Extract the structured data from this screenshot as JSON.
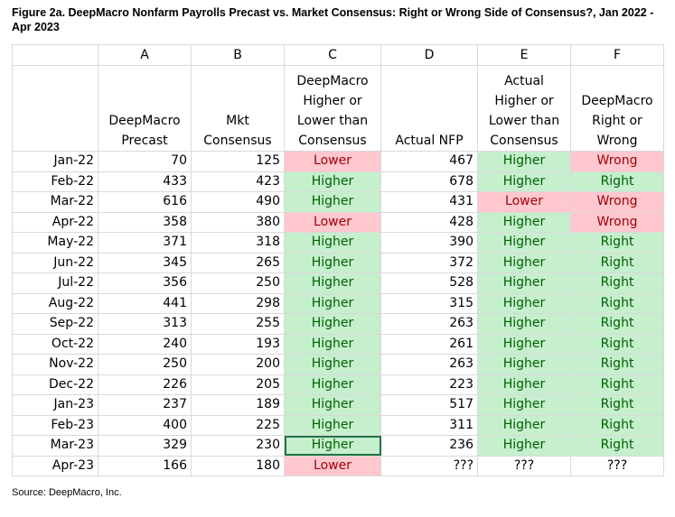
{
  "title": "Figure 2a. DeepMacro Nonfarm Payrolls Precast vs. Market Consensus: Right or Wrong Side of Consensus?, Jan 2022 - Apr 2023",
  "source": "Source: DeepMacro, Inc.",
  "column_letters": [
    "A",
    "B",
    "C",
    "D",
    "E",
    "F"
  ],
  "column_headers": [
    "DeepMacro Precast",
    "Mkt Consensus",
    "DeepMacro Higher or Lower than Consensus",
    "Actual NFP",
    "Actual Higher or Lower than Consensus",
    "DeepMacro Right or Wrong"
  ],
  "rows": [
    {
      "month": "Jan-22",
      "precast": "70",
      "consensus": "125",
      "dm_vs_cons": "Lower",
      "actual": "467",
      "actual_vs_cons": "Higher",
      "right_wrong": "Wrong"
    },
    {
      "month": "Feb-22",
      "precast": "433",
      "consensus": "423",
      "dm_vs_cons": "Higher",
      "actual": "678",
      "actual_vs_cons": "Higher",
      "right_wrong": "Right"
    },
    {
      "month": "Mar-22",
      "precast": "616",
      "consensus": "490",
      "dm_vs_cons": "Higher",
      "actual": "431",
      "actual_vs_cons": "Lower",
      "right_wrong": "Wrong"
    },
    {
      "month": "Apr-22",
      "precast": "358",
      "consensus": "380",
      "dm_vs_cons": "Lower",
      "actual": "428",
      "actual_vs_cons": "Higher",
      "right_wrong": "Wrong"
    },
    {
      "month": "May-22",
      "precast": "371",
      "consensus": "318",
      "dm_vs_cons": "Higher",
      "actual": "390",
      "actual_vs_cons": "Higher",
      "right_wrong": "Right"
    },
    {
      "month": "Jun-22",
      "precast": "345",
      "consensus": "265",
      "dm_vs_cons": "Higher",
      "actual": "372",
      "actual_vs_cons": "Higher",
      "right_wrong": "Right"
    },
    {
      "month": "Jul-22",
      "precast": "356",
      "consensus": "250",
      "dm_vs_cons": "Higher",
      "actual": "528",
      "actual_vs_cons": "Higher",
      "right_wrong": "Right"
    },
    {
      "month": "Aug-22",
      "precast": "441",
      "consensus": "298",
      "dm_vs_cons": "Higher",
      "actual": "315",
      "actual_vs_cons": "Higher",
      "right_wrong": "Right"
    },
    {
      "month": "Sep-22",
      "precast": "313",
      "consensus": "255",
      "dm_vs_cons": "Higher",
      "actual": "263",
      "actual_vs_cons": "Higher",
      "right_wrong": "Right"
    },
    {
      "month": "Oct-22",
      "precast": "240",
      "consensus": "193",
      "dm_vs_cons": "Higher",
      "actual": "261",
      "actual_vs_cons": "Higher",
      "right_wrong": "Right"
    },
    {
      "month": "Nov-22",
      "precast": "250",
      "consensus": "200",
      "dm_vs_cons": "Higher",
      "actual": "263",
      "actual_vs_cons": "Higher",
      "right_wrong": "Right"
    },
    {
      "month": "Dec-22",
      "precast": "226",
      "consensus": "205",
      "dm_vs_cons": "Higher",
      "actual": "223",
      "actual_vs_cons": "Higher",
      "right_wrong": "Right"
    },
    {
      "month": "Jan-23",
      "precast": "237",
      "consensus": "189",
      "dm_vs_cons": "Higher",
      "actual": "517",
      "actual_vs_cons": "Higher",
      "right_wrong": "Right"
    },
    {
      "month": "Feb-23",
      "precast": "400",
      "consensus": "225",
      "dm_vs_cons": "Higher",
      "actual": "311",
      "actual_vs_cons": "Higher",
      "right_wrong": "Right"
    },
    {
      "month": "Mar-23",
      "precast": "329",
      "consensus": "230",
      "dm_vs_cons": "Higher",
      "actual": "236",
      "actual_vs_cons": "Higher",
      "right_wrong": "Right"
    },
    {
      "month": "Apr-23",
      "precast": "166",
      "consensus": "180",
      "dm_vs_cons": "Lower",
      "actual": "???",
      "actual_vs_cons": "???",
      "right_wrong": "???"
    }
  ],
  "colors": {
    "good_fill": "#c6efce",
    "good_text": "#006100",
    "bad_fill": "#ffc7ce",
    "bad_text": "#9c0006"
  }
}
